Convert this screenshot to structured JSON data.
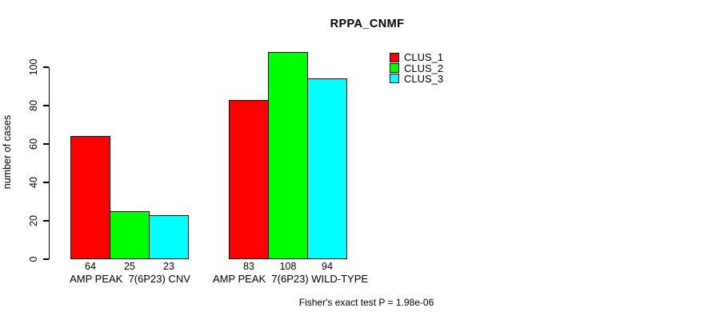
{
  "chart_data": {
    "type": "bar",
    "title": "RPPA_CNMF",
    "xlabel": "",
    "ylabel": "number of cases",
    "categories": [
      "AMP PEAK  7(6P23) CNV",
      "AMP PEAK  7(6P23) WILD-TYPE"
    ],
    "series": [
      {
        "name": "CLUS_1",
        "color": "#ff0000",
        "values": [
          64,
          83
        ]
      },
      {
        "name": "CLUS_2",
        "color": "#00ff00",
        "values": [
          25,
          108
        ]
      },
      {
        "name": "CLUS_3",
        "color": "#00ffff",
        "values": [
          23,
          94
        ]
      }
    ],
    "bar_value_labels": [
      [
        64,
        25,
        23
      ],
      [
        83,
        108,
        94
      ]
    ],
    "ylim": [
      0,
      100
    ],
    "yticks": [
      0,
      20,
      40,
      60,
      80,
      100
    ],
    "grid": false,
    "legend_position": "top-right",
    "note": "Fisher's exact test P = 1.98e-06"
  },
  "colors": {
    "axis": "#000000",
    "text": "#000000",
    "background": "#ffffff"
  }
}
